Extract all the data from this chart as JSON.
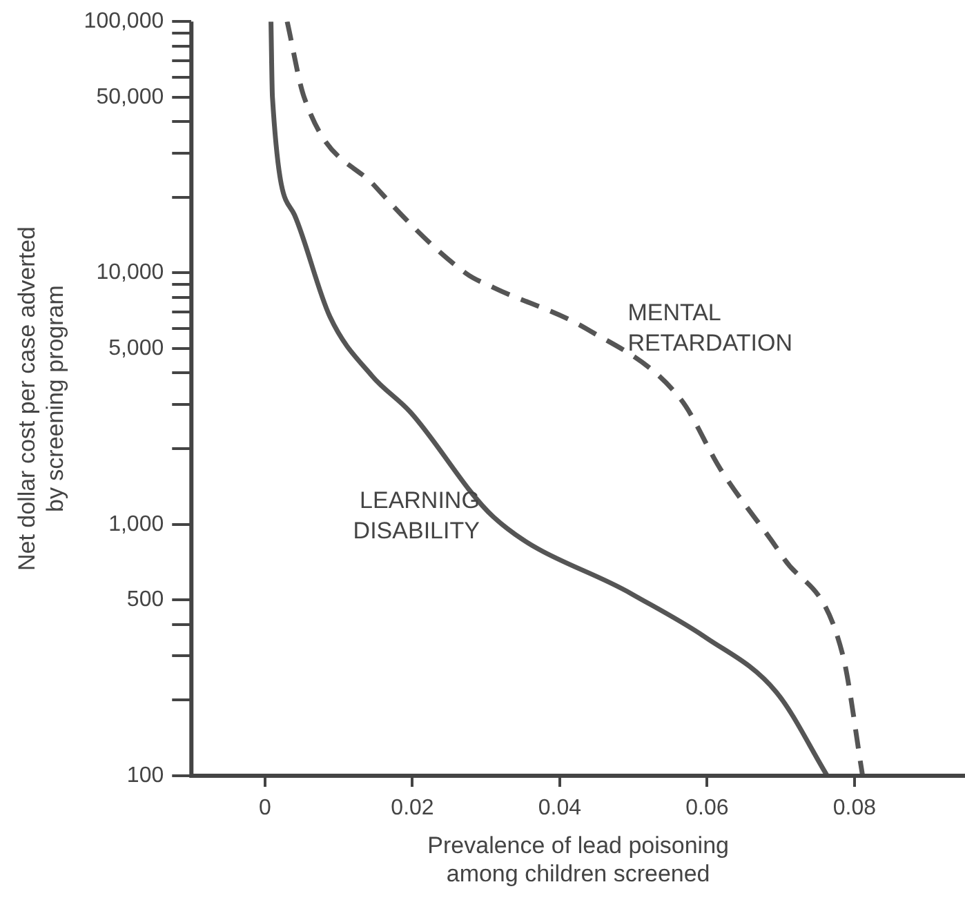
{
  "chart_data": {
    "type": "line",
    "xlabel": "Prevalence of lead poisoning among children screened",
    "ylabel": "Net dollar cost per case adverted by screening program",
    "series": [
      {
        "name": "LEARNING DISABILITY",
        "color": "#555555",
        "line_style": "solid",
        "x": [
          0.0008,
          0.001,
          0.004,
          0.0088,
          0.0145,
          0.0197,
          0.031,
          0.0497,
          0.0598,
          0.0694,
          0.0763
        ],
        "values": [
          100000,
          50000,
          17000,
          6700,
          3900,
          2800,
          1070,
          530,
          355,
          215,
          100
        ]
      },
      {
        "name": "MENTAL RETARDATION",
        "color": "#555555",
        "line_style": "dashed",
        "x": [
          0.003,
          0.0053,
          0.015,
          0.0272,
          0.031,
          0.0436,
          0.0564,
          0.0618,
          0.0703,
          0.0784,
          0.0811
        ],
        "values": [
          100000,
          50000,
          22000,
          10000,
          8750,
          6000,
          3150,
          1660,
          740,
          303,
          100
        ]
      }
    ],
    "log": "y",
    "grid": false,
    "legend": false,
    "marker": "none",
    "xlim": [
      -0.01,
      0.095
    ],
    "xticks": [
      0,
      0.02,
      0.04,
      0.06,
      0.08
    ],
    "ylim": [
      100,
      100000
    ],
    "yticks": [
      100,
      {
        "value": 200,
        "label": null
      },
      {
        "value": 300,
        "label": null
      },
      {
        "value": 400,
        "label": null
      },
      500,
      {
        "value": 1000,
        "label": "1,000"
      },
      {
        "value": 2000,
        "label": null
      },
      {
        "value": 3000,
        "label": null
      },
      {
        "value": 4000,
        "label": null
      },
      {
        "value": 5000,
        "label": "5,000"
      },
      {
        "value": 6000,
        "label": null
      },
      {
        "value": 7000,
        "label": null
      },
      {
        "value": 8000,
        "label": null
      },
      {
        "value": 9000,
        "label": null
      },
      {
        "value": 10000,
        "label": "10,000"
      },
      {
        "value": 20000,
        "label": null
      },
      {
        "value": 30000,
        "label": null
      },
      {
        "value": 40000,
        "label": null
      },
      {
        "value": 50000,
        "label": "50,000"
      },
      {
        "value": 60000,
        "label": null
      },
      {
        "value": 70000,
        "label": null
      },
      {
        "value": 80000,
        "label": null
      },
      {
        "value": 90000,
        "label": null
      },
      {
        "value": 100000,
        "label": "100,000"
      }
    ]
  }
}
